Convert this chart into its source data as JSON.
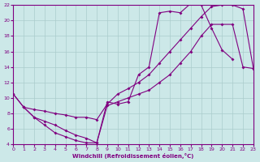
{
  "xlabel": "Windchill (Refroidissement éolien,°C)",
  "bg_color": "#cce8e8",
  "line_color": "#800080",
  "grid_color": "#aacccc",
  "xlim": [
    0,
    23
  ],
  "ylim": [
    4,
    22
  ],
  "yticks": [
    4,
    6,
    8,
    10,
    12,
    14,
    16,
    18,
    20,
    22
  ],
  "xticks": [
    0,
    1,
    2,
    3,
    4,
    5,
    6,
    7,
    8,
    9,
    10,
    11,
    12,
    13,
    14,
    15,
    16,
    17,
    18,
    19,
    20,
    21,
    22,
    23
  ],
  "line1_x": [
    0,
    1,
    2,
    3,
    4,
    5,
    6,
    7,
    8,
    9,
    10,
    11,
    12,
    13,
    14,
    15,
    16,
    17,
    18,
    19,
    20,
    21
  ],
  "line1_y": [
    10.5,
    8.8,
    7.5,
    7.0,
    6.5,
    5.8,
    5.2,
    4.8,
    4.2,
    9.5,
    9.2,
    9.5,
    13.0,
    14.0,
    21.0,
    21.2,
    21.0,
    22.2,
    22.0,
    19.0,
    16.2,
    15.0
  ],
  "line2_x": [
    0,
    1,
    2,
    3,
    4,
    5,
    6,
    7,
    8,
    9,
    10,
    11,
    12,
    13,
    14,
    15,
    16,
    17,
    18,
    19,
    20,
    21,
    22,
    23
  ],
  "line2_y": [
    10.5,
    8.8,
    7.5,
    6.5,
    5.5,
    5.0,
    4.5,
    4.2,
    4.2,
    9.0,
    9.5,
    10.0,
    10.5,
    11.0,
    12.0,
    13.0,
    14.5,
    16.0,
    18.0,
    19.5,
    19.5,
    19.5,
    14.0,
    13.8
  ],
  "line3_x": [
    1,
    2,
    3,
    4,
    5,
    6,
    7,
    8,
    9,
    10,
    11,
    12,
    13,
    14,
    15,
    16,
    17,
    18,
    19,
    20,
    21,
    22,
    23
  ],
  "line3_y": [
    8.8,
    8.5,
    8.3,
    8.0,
    7.8,
    7.5,
    7.5,
    7.2,
    9.2,
    10.5,
    11.2,
    12.0,
    13.0,
    14.5,
    16.0,
    17.5,
    19.0,
    20.5,
    21.8,
    22.0,
    22.0,
    21.5,
    13.8
  ]
}
